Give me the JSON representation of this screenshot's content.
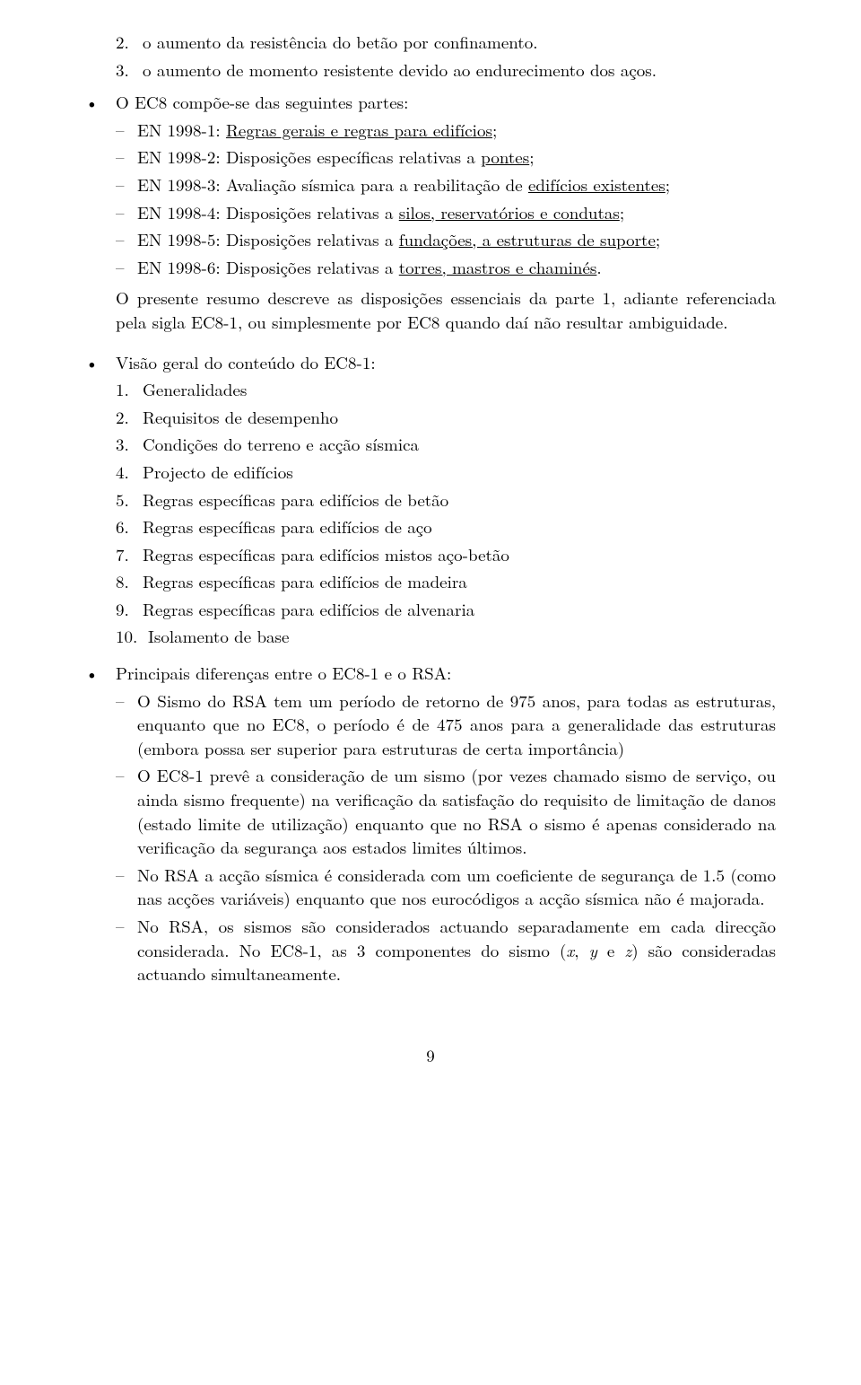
{
  "intro_nums": [
    {
      "n": "2.",
      "text": "o aumento da resistência do betão por confinamento."
    },
    {
      "n": "3.",
      "text": "o aumento de momento resistente devido ao endurecimento dos aços."
    }
  ],
  "ec8_lead": "O EC8 compõe-se das seguintes partes:",
  "ec8_parts": [
    {
      "pre": "EN 1998-1: ",
      "u": "Regras gerais e regras para edifícios",
      "post": ";"
    },
    {
      "pre": "EN 1998-2: Disposições específicas relativas a ",
      "u": "pontes",
      "post": ";"
    },
    {
      "pre": "EN 1998-3: Avaliação sísmica para a reabilitação de ",
      "u": "edifícios existentes",
      "post": ";"
    },
    {
      "pre": "EN 1998-4: Disposições relativas a ",
      "u": "silos, reservatórios e condutas",
      "post": ";"
    },
    {
      "pre": "EN 1998-5: Disposições relativas a ",
      "u": "fundações, a estruturas de suporte",
      "post": ";"
    },
    {
      "pre": "EN 1998-6: Disposições relativas a ",
      "u": "torres, mastros e chaminés",
      "post": "."
    }
  ],
  "ec8_summary": "O presente resumo descreve as disposições essenciais da parte 1, adiante referenciada pela sigla EC8-1, ou simplesmente por EC8 quando daí não resultar ambiguidade.",
  "visao_lead": "Visão geral do conteúdo do EC8-1:",
  "visao_items": [
    {
      "n": "1.",
      "text": "Generalidades"
    },
    {
      "n": "2.",
      "text": "Requisitos de desempenho"
    },
    {
      "n": "3.",
      "text": "Condições do terreno e acção sísmica"
    },
    {
      "n": "4.",
      "text": "Projecto de edifícios"
    },
    {
      "n": "5.",
      "text": "Regras específicas para edifícios de betão"
    },
    {
      "n": "6.",
      "text": "Regras específicas para edifícios de aço"
    },
    {
      "n": "7.",
      "text": "Regras específicas para edifícios mistos aço-betão"
    },
    {
      "n": "8.",
      "text": "Regras específicas para edifícios de madeira"
    },
    {
      "n": "9.",
      "text": "Regras específicas para edifícios de alvenaria"
    },
    {
      "n": "10.",
      "text": "Isolamento de base"
    }
  ],
  "diff_lead": "Principais diferenças entre o EC8-1 e o RSA:",
  "diffs": {
    "d0": "O Sismo do RSA tem um período de retorno de 975 anos, para todas as estruturas, enquanto que no EC8, o período é de 475 anos para a generalidade das estruturas (embora possa ser superior para estruturas de certa importância)",
    "d1": "O EC8-1 prevê a consideração de um sismo (por vezes chamado sismo de serviço, ou ainda sismo frequente) na verificação da satisfação do requisito de limitação de danos (estado limite de utilização) enquanto que no RSA o sismo é apenas considerado na verificação da segurança aos estados limites últimos.",
    "d2": "No RSA a acção sísmica é considerada com um coeficiente de segurança de 1.5 (como nas acções variáveis) enquanto que nos eurocódigos a acção sísmica não é majorada.",
    "d3_a": "No RSA, os sismos são considerados actuando separadamente em cada direcção considerada. No EC8-1, as 3 componentes do sismo (",
    "d3_x": "x",
    "d3_s1": ", ",
    "d3_y": "y",
    "d3_s2": " e ",
    "d3_z": "z",
    "d3_b": ") são consideradas actuando simultaneamente."
  },
  "page_number": "9",
  "sym": {
    "bullet": "•",
    "dash": "–"
  }
}
